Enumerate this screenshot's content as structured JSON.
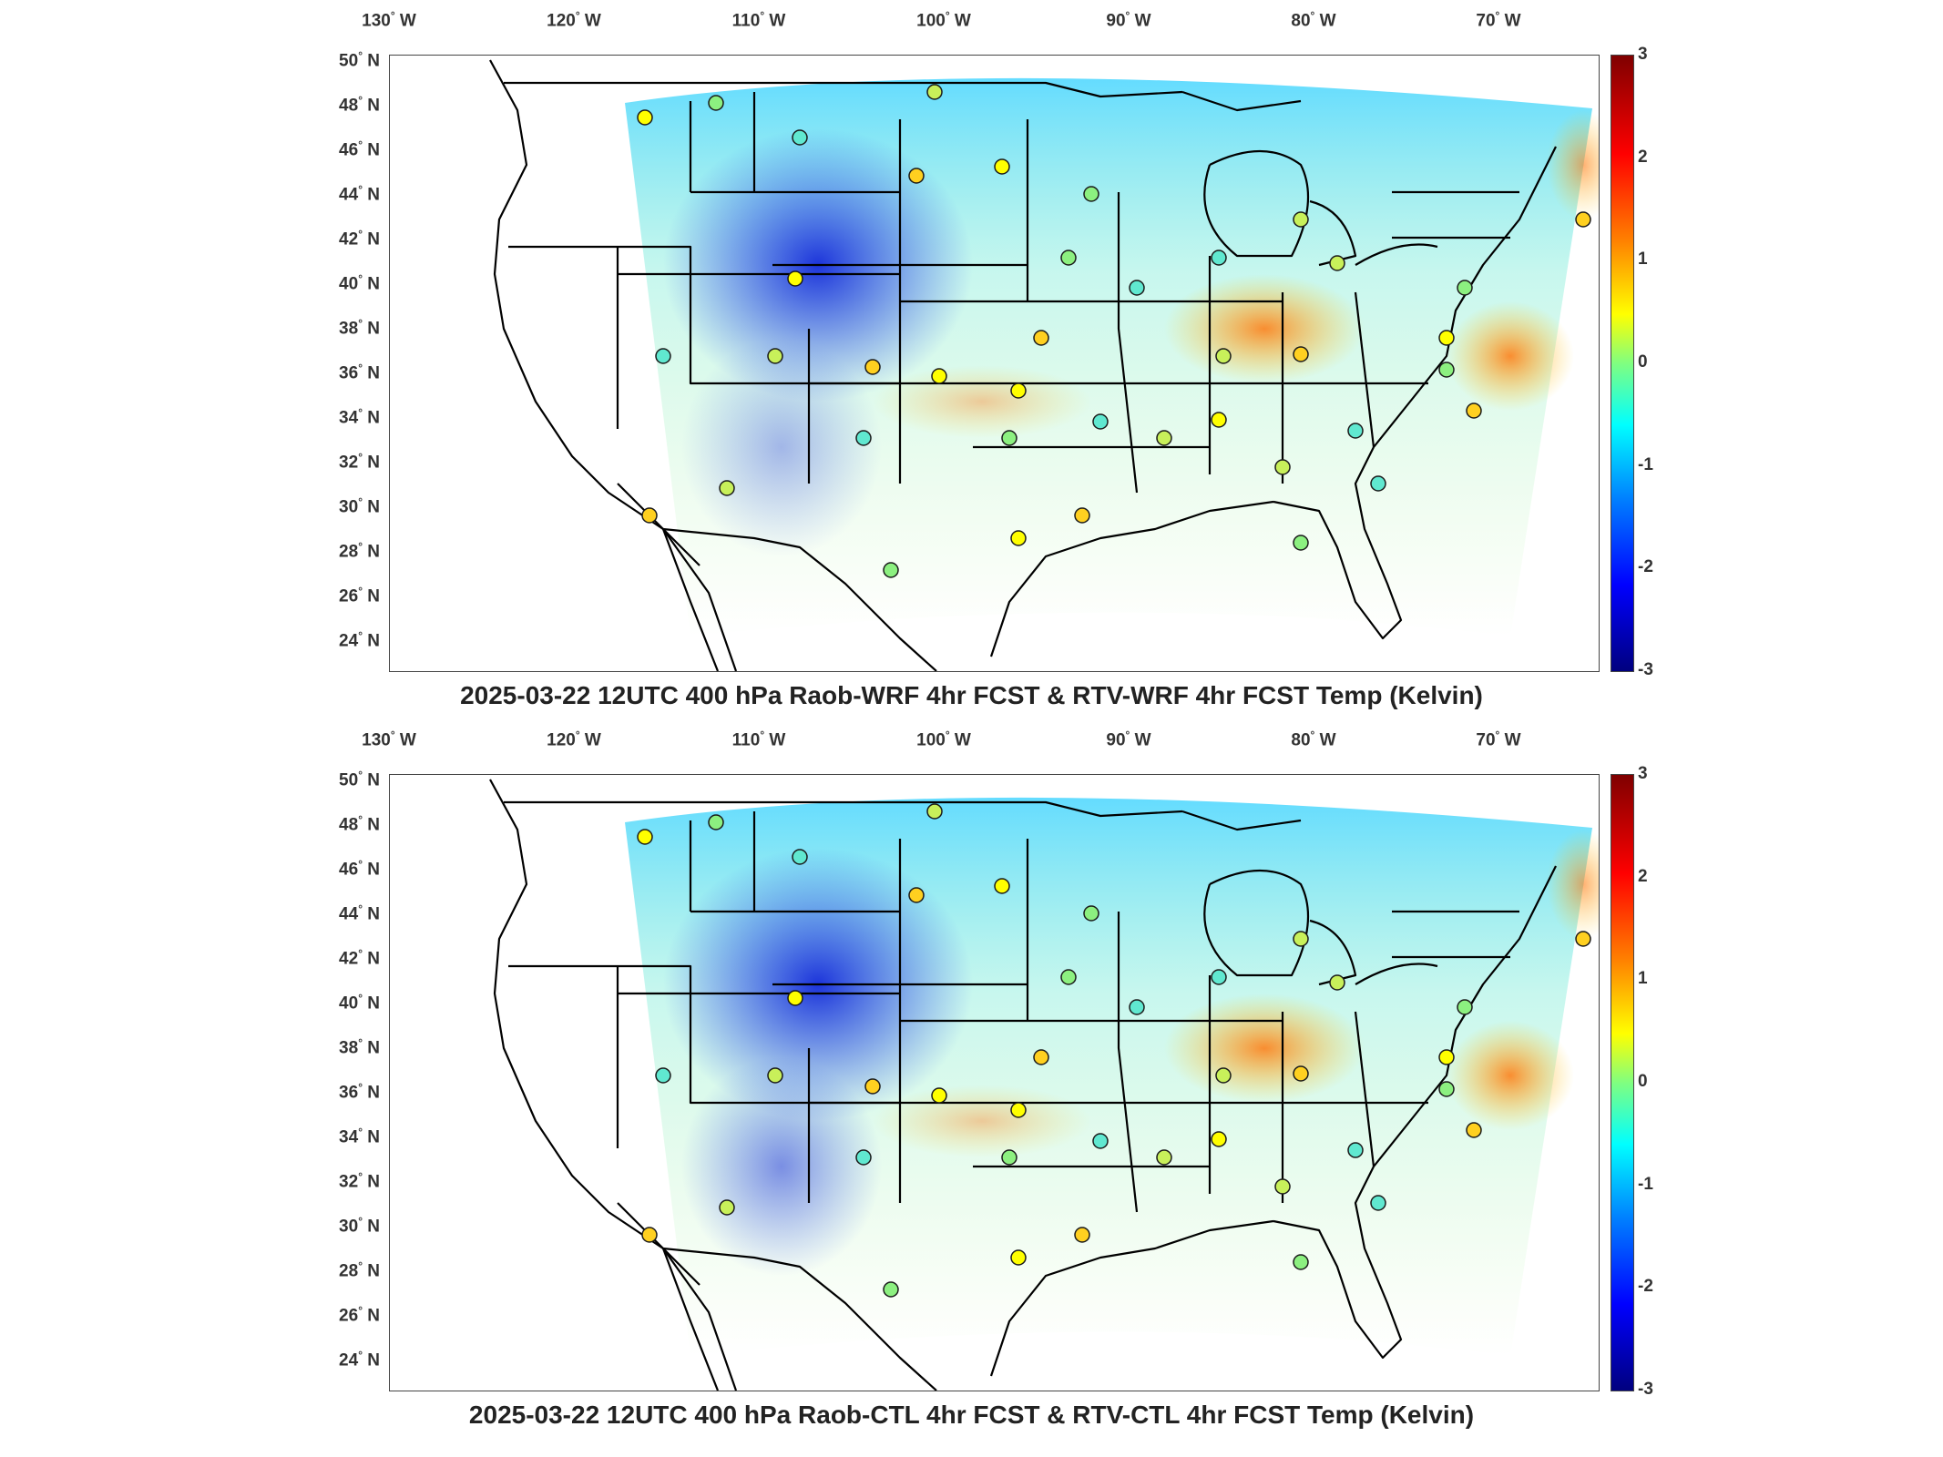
{
  "panels": [
    {
      "id": "top",
      "title": "2025-03-22 12UTC 400 hPa Raob-WRF 4hr FCST & RTV-WRF 4hr FCST Temp (Kelvin)"
    },
    {
      "id": "bottom",
      "title": "2025-03-22 12UTC 400 hPa Raob-CTL 4hr FCST & RTV-CTL 4hr FCST Temp (Kelvin)"
    }
  ],
  "lon_ticks": [
    {
      "value": "130",
      "dir": "W"
    },
    {
      "value": "120",
      "dir": "W"
    },
    {
      "value": "110",
      "dir": "W"
    },
    {
      "value": "100",
      "dir": "W"
    },
    {
      "value": "90",
      "dir": "W"
    },
    {
      "value": "80",
      "dir": "W"
    },
    {
      "value": "70",
      "dir": "W"
    }
  ],
  "lat_ticks": [
    {
      "value": "50",
      "dir": "N"
    },
    {
      "value": "48",
      "dir": "N"
    },
    {
      "value": "46",
      "dir": "N"
    },
    {
      "value": "44",
      "dir": "N"
    },
    {
      "value": "42",
      "dir": "N"
    },
    {
      "value": "40",
      "dir": "N"
    },
    {
      "value": "38",
      "dir": "N"
    },
    {
      "value": "36",
      "dir": "N"
    },
    {
      "value": "34",
      "dir": "N"
    },
    {
      "value": "32",
      "dir": "N"
    },
    {
      "value": "30",
      "dir": "N"
    },
    {
      "value": "28",
      "dir": "N"
    },
    {
      "value": "26",
      "dir": "N"
    },
    {
      "value": "24",
      "dir": "N"
    }
  ],
  "colorbar": {
    "ticks": [
      "3",
      "2",
      "1",
      "0",
      "-1",
      "-2",
      "-3"
    ],
    "colors": [
      "#7f0000",
      "#ff0000",
      "#ff8000",
      "#ffff00",
      "#80ff80",
      "#00ffff",
      "#0080ff",
      "#0000ff",
      "#00007f"
    ]
  },
  "degree_symbol": "°"
}
